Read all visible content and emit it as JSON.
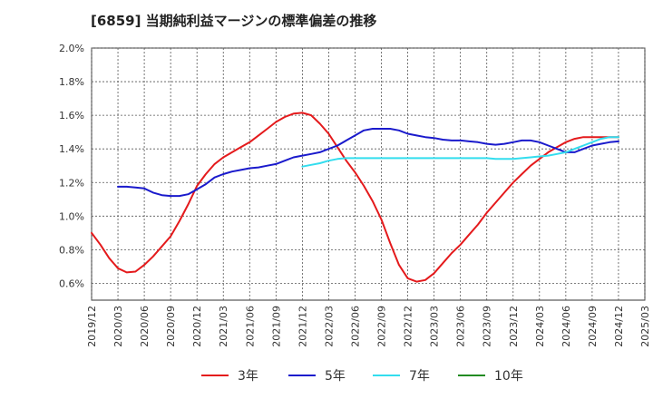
{
  "chart_data": {
    "type": "line",
    "title": "[6859]  当期純利益マージンの標準偏差の推移",
    "xlabel": "",
    "ylabel": "",
    "ylim": [
      0.5,
      2.0
    ],
    "yticks": [
      "2.0%",
      "1.8%",
      "1.6%",
      "1.4%",
      "1.2%",
      "1.0%",
      "0.8%",
      "0.6%"
    ],
    "xticks": [
      "2019/12",
      "2020/03",
      "2020/06",
      "2020/09",
      "2020/12",
      "2021/03",
      "2021/06",
      "2021/09",
      "2021/12",
      "2022/03",
      "2022/06",
      "2022/09",
      "2022/12",
      "2023/03",
      "2023/06",
      "2023/09",
      "2023/12",
      "2024/03",
      "2024/06",
      "2024/09",
      "2024/12",
      "2025/03"
    ],
    "grid": true,
    "legend_position": "bottom",
    "series": [
      {
        "name": "3年",
        "color": "#e41a1c",
        "x": [
          "2019/12",
          "2020/01",
          "2020/02",
          "2020/03",
          "2020/04",
          "2020/05",
          "2020/06",
          "2020/07",
          "2020/08",
          "2020/09",
          "2020/10",
          "2020/11",
          "2020/12",
          "2021/01",
          "2021/02",
          "2021/03",
          "2021/04",
          "2021/05",
          "2021/06",
          "2021/07",
          "2021/08",
          "2021/09",
          "2021/10",
          "2021/11",
          "2021/12",
          "2022/01",
          "2022/02",
          "2022/03",
          "2022/04",
          "2022/05",
          "2022/06",
          "2022/07",
          "2022/08",
          "2022/09",
          "2022/10",
          "2022/11",
          "2022/12",
          "2023/01",
          "2023/02",
          "2023/03",
          "2023/04",
          "2023/05",
          "2023/06",
          "2023/07",
          "2023/08",
          "2023/09",
          "2023/10",
          "2023/11",
          "2023/12",
          "2024/01",
          "2024/02",
          "2024/03",
          "2024/04",
          "2024/05",
          "2024/06",
          "2024/07",
          "2024/08",
          "2024/09",
          "2024/10",
          "2024/11",
          "2024/12"
        ],
        "values": [
          0.9,
          0.83,
          0.75,
          0.69,
          0.665,
          0.67,
          0.71,
          0.76,
          0.82,
          0.88,
          0.97,
          1.07,
          1.18,
          1.25,
          1.31,
          1.35,
          1.38,
          1.41,
          1.44,
          1.48,
          1.52,
          1.56,
          1.59,
          1.61,
          1.615,
          1.6,
          1.55,
          1.49,
          1.41,
          1.33,
          1.26,
          1.18,
          1.09,
          0.98,
          0.84,
          0.71,
          0.63,
          0.61,
          0.62,
          0.66,
          0.72,
          0.78,
          0.83,
          0.89,
          0.95,
          1.02,
          1.08,
          1.14,
          1.2,
          1.25,
          1.3,
          1.34,
          1.38,
          1.41,
          1.44,
          1.46,
          1.47,
          1.47,
          1.47,
          1.47,
          1.47
        ]
      },
      {
        "name": "5年",
        "color": "#1a1acc",
        "x": [
          "2020/03",
          "2020/04",
          "2020/05",
          "2020/06",
          "2020/07",
          "2020/08",
          "2020/09",
          "2020/10",
          "2020/11",
          "2020/12",
          "2021/01",
          "2021/02",
          "2021/03",
          "2021/04",
          "2021/05",
          "2021/06",
          "2021/07",
          "2021/08",
          "2021/09",
          "2021/10",
          "2021/11",
          "2021/12",
          "2022/01",
          "2022/02",
          "2022/03",
          "2022/04",
          "2022/05",
          "2022/06",
          "2022/07",
          "2022/08",
          "2022/09",
          "2022/10",
          "2022/11",
          "2022/12",
          "2023/01",
          "2023/02",
          "2023/03",
          "2023/04",
          "2023/05",
          "2023/06",
          "2023/07",
          "2023/08",
          "2023/09",
          "2023/10",
          "2023/11",
          "2023/12",
          "2024/01",
          "2024/02",
          "2024/03",
          "2024/04",
          "2024/05",
          "2024/06",
          "2024/07",
          "2024/08",
          "2024/09",
          "2024/10",
          "2024/11",
          "2024/12"
        ],
        "values": [
          1.175,
          1.175,
          1.17,
          1.165,
          1.14,
          1.125,
          1.12,
          1.12,
          1.13,
          1.16,
          1.19,
          1.23,
          1.25,
          1.265,
          1.275,
          1.285,
          1.29,
          1.3,
          1.31,
          1.33,
          1.35,
          1.36,
          1.37,
          1.38,
          1.4,
          1.42,
          1.45,
          1.48,
          1.51,
          1.52,
          1.52,
          1.52,
          1.51,
          1.49,
          1.48,
          1.47,
          1.465,
          1.455,
          1.45,
          1.45,
          1.445,
          1.44,
          1.43,
          1.425,
          1.43,
          1.44,
          1.45,
          1.45,
          1.44,
          1.42,
          1.4,
          1.38,
          1.38,
          1.4,
          1.42,
          1.43,
          1.44,
          1.445
        ]
      },
      {
        "name": "7年",
        "color": "#33ddee",
        "x": [
          "2021/12",
          "2022/01",
          "2022/02",
          "2022/03",
          "2022/04",
          "2022/05",
          "2022/06",
          "2022/07",
          "2022/08",
          "2022/09",
          "2022/10",
          "2022/11",
          "2022/12",
          "2023/01",
          "2023/02",
          "2023/03",
          "2023/04",
          "2023/05",
          "2023/06",
          "2023/07",
          "2023/08",
          "2023/09",
          "2023/10",
          "2023/11",
          "2023/12",
          "2024/01",
          "2024/02",
          "2024/03",
          "2024/04",
          "2024/05",
          "2024/06",
          "2024/07",
          "2024/08",
          "2024/09",
          "2024/10",
          "2024/11",
          "2024/12"
        ],
        "values": [
          1.295,
          1.305,
          1.315,
          1.33,
          1.34,
          1.345,
          1.345,
          1.345,
          1.345,
          1.345,
          1.345,
          1.345,
          1.345,
          1.345,
          1.345,
          1.345,
          1.345,
          1.345,
          1.345,
          1.345,
          1.345,
          1.345,
          1.34,
          1.34,
          1.34,
          1.345,
          1.35,
          1.355,
          1.36,
          1.37,
          1.38,
          1.4,
          1.42,
          1.44,
          1.46,
          1.47,
          1.47
        ]
      },
      {
        "name": "10年",
        "color": "#228b22",
        "x": [],
        "values": []
      }
    ]
  }
}
